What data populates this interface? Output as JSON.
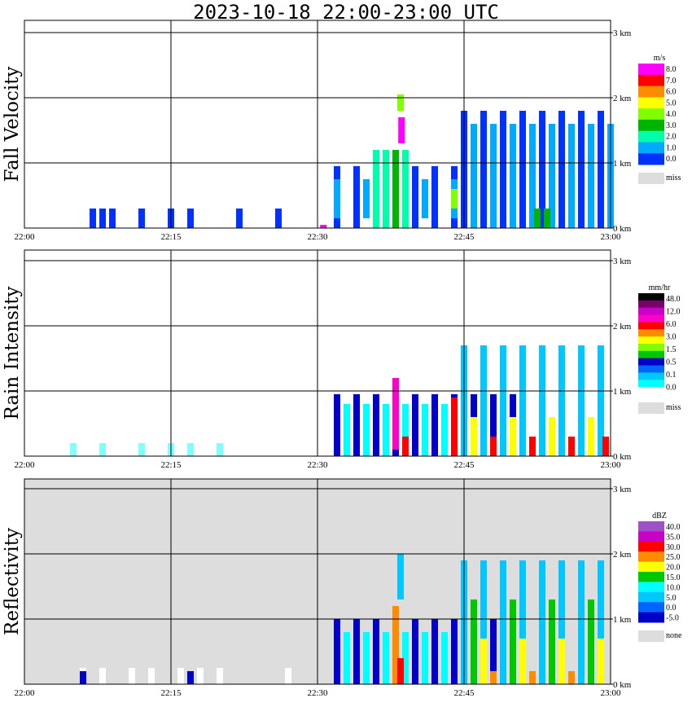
{
  "title": "2023-10-18   22:00-23:00 UTC",
  "chart_data": [
    {
      "type": "heatmap",
      "ylabel": "Fall Velocity",
      "unit": "m/s",
      "x_ticks": [
        "22:00",
        "22:15",
        "22:30",
        "22:45",
        "23:00"
      ],
      "y_ticks": [
        "0 km",
        "1 km",
        "2 km",
        "3 km"
      ],
      "ylim": [
        0,
        3
      ],
      "background": "#ffffff",
      "legend": [
        {
          "label": "8.0",
          "color": "#ff00ff"
        },
        {
          "label": "7.0",
          "color": "#ff0000"
        },
        {
          "label": "6.0",
          "color": "#ff8c00"
        },
        {
          "label": "5.0",
          "color": "#ffff00"
        },
        {
          "label": "4.0",
          "color": "#7fff00"
        },
        {
          "label": "3.0",
          "color": "#00b400"
        },
        {
          "label": "2.0",
          "color": "#00ffaa"
        },
        {
          "label": "1.0",
          "color": "#00aaff"
        },
        {
          "label": "0.0",
          "color": "#0032ff"
        },
        {
          "label": "miss",
          "color": "#dddddd"
        }
      ],
      "cbar_colors": [
        "#ff00ff",
        "#ff0000",
        "#ff8c00",
        "#ffff00",
        "#7fff00",
        "#00b400",
        "#00ffaa",
        "#00aaff",
        "#0032ff"
      ],
      "miss_label": "miss",
      "series": [
        {
          "x": [
            7,
            8,
            9,
            12,
            15,
            17,
            22,
            26
          ],
          "ymin": 0,
          "ymax": 0.3,
          "color": "#0032ff"
        },
        {
          "x": [
            30.6
          ],
          "ymin": 0,
          "ymax": 0.05,
          "color": "#ff00ff"
        },
        {
          "x": [
            32,
            34,
            36,
            38,
            40,
            42,
            44,
            46,
            48,
            50
          ],
          "ymin": 0,
          "ymax": 0.95,
          "color": "#0032ff"
        },
        {
          "x": [
            32,
            35,
            38,
            41,
            44,
            47
          ],
          "ymin": 0.15,
          "ymax": 0.75,
          "color": "#00aaff"
        },
        {
          "x": [
            36,
            37,
            38,
            39
          ],
          "ymin": 0,
          "ymax": 1.2,
          "color": "#00ffaa"
        },
        {
          "x": [
            38
          ],
          "ymin": 0,
          "ymax": 1.2,
          "color": "#00b400"
        },
        {
          "x": [
            38.6
          ],
          "ymin": 1.3,
          "ymax": 1.7,
          "color": "#ff00ff"
        },
        {
          "x": [
            38.5
          ],
          "ymin": 1.8,
          "ymax": 2.05,
          "color": "#7fff00"
        },
        {
          "x": [
            44
          ],
          "ymin": 0.3,
          "ymax": 0.6,
          "color": "#7fff00"
        },
        {
          "x": [
            45,
            47,
            49,
            51,
            53,
            55,
            57,
            59
          ],
          "ymin": 0,
          "ymax": 1.8,
          "color": "#0032ff"
        },
        {
          "x": [
            46,
            48,
            50,
            52,
            54,
            56,
            58,
            60
          ],
          "ymin": 0,
          "ymax": 1.6,
          "color": "#00aaff"
        },
        {
          "x": [
            52.5,
            53.5
          ],
          "ymin": 0,
          "ymax": 0.3,
          "color": "#00b400"
        }
      ]
    },
    {
      "type": "heatmap",
      "ylabel": "Rain Intensity",
      "unit": "mm/hr",
      "x_ticks": [
        "22:00",
        "22:15",
        "22:30",
        "22:45",
        "23:00"
      ],
      "y_ticks": [
        "0 km",
        "1 km",
        "2 km",
        "3 km"
      ],
      "ylim": [
        0,
        3
      ],
      "background": "#ffffff",
      "legend": [
        {
          "label": "48.0",
          "color": "#000000"
        },
        {
          "label": "12.0",
          "color": "#c800c8"
        },
        {
          "label": "6.0",
          "color": "#ff0000"
        },
        {
          "label": "3.0",
          "color": "#ffff00"
        },
        {
          "label": "1.5",
          "color": "#00c800"
        },
        {
          "label": "0.5",
          "color": "#0064ff"
        },
        {
          "label": "0.1",
          "color": "#00ffff"
        },
        {
          "label": "0.0",
          "color": "#ffffff"
        },
        {
          "label": "miss",
          "color": "#dddddd"
        }
      ],
      "cbar_colors": [
        "#000000",
        "#7a006e",
        "#c800c8",
        "#ff00c8",
        "#ff0000",
        "#ff8c00",
        "#ffff00",
        "#7fff00",
        "#00c800",
        "#0000c8",
        "#0064ff",
        "#00c8ff",
        "#00ffff",
        "#ffffff"
      ],
      "miss_label": "miss",
      "series": [
        {
          "x": [
            5,
            8,
            12,
            15,
            17,
            20
          ],
          "ymin": 0,
          "ymax": 0.2,
          "color": "#7fffff"
        },
        {
          "x": [
            32,
            34,
            36,
            38,
            40,
            42,
            44,
            46,
            48,
            50
          ],
          "ymin": 0,
          "ymax": 0.95,
          "color": "#0000c8"
        },
        {
          "x": [
            33,
            35,
            37,
            39,
            41,
            43,
            45,
            47,
            49
          ],
          "ymin": 0,
          "ymax": 0.8,
          "color": "#00ffff"
        },
        {
          "x": [
            38
          ],
          "ymin": 0.1,
          "ymax": 1.2,
          "color": "#ff00c8"
        },
        {
          "x": [
            39
          ],
          "ymin": 0,
          "ymax": 0.3,
          "color": "#ff0000"
        },
        {
          "x": [
            44
          ],
          "ymin": 0,
          "ymax": 0.9,
          "color": "#ff0000"
        },
        {
          "x": [
            45,
            47,
            49,
            51,
            53,
            55,
            57,
            59
          ],
          "ymin": 0,
          "ymax": 1.7,
          "color": "#00c8ff"
        },
        {
          "x": [
            46,
            50,
            54,
            58
          ],
          "ymin": 0,
          "ymax": 0.6,
          "color": "#ffff00"
        },
        {
          "x": [
            48,
            52,
            56,
            59.5
          ],
          "ymin": 0,
          "ymax": 0.3,
          "color": "#ff0000"
        }
      ]
    },
    {
      "type": "heatmap",
      "ylabel": "Reflectivity",
      "unit": "dBZ",
      "x_ticks": [
        "22:00",
        "22:15",
        "22:30",
        "22:45",
        "23:00"
      ],
      "y_ticks": [
        "0 km",
        "1 km",
        "2 km",
        "3 km"
      ],
      "ylim": [
        0,
        3
      ],
      "background": "#dddddd",
      "legend": [
        {
          "label": "40.0",
          "color": "#a050c8"
        },
        {
          "label": "35.0",
          "color": "#c800c8"
        },
        {
          "label": "30.0",
          "color": "#ff0000"
        },
        {
          "label": "25.0",
          "color": "#ff8c00"
        },
        {
          "label": "20.0",
          "color": "#ffff00"
        },
        {
          "label": "15.0",
          "color": "#00c800"
        },
        {
          "label": "10.0",
          "color": "#00ffff"
        },
        {
          "label": "5.0",
          "color": "#00c8ff"
        },
        {
          "label": "0.0",
          "color": "#0064ff"
        },
        {
          "label": "-5.0",
          "color": "#0000c8"
        },
        {
          "label": "none",
          "color": "#dddddd"
        }
      ],
      "cbar_colors": [
        "#a050c8",
        "#c800c8",
        "#ff0000",
        "#ff8c00",
        "#ffff00",
        "#00c800",
        "#00ffff",
        "#00c8ff",
        "#0064ff",
        "#0000c8"
      ],
      "miss_label": "none",
      "series": [
        {
          "x": [
            6,
            8,
            11,
            13,
            16,
            18,
            20,
            27
          ],
          "ymin": 0,
          "ymax": 0.25,
          "color": "#ffffff"
        },
        {
          "x": [
            6,
            17
          ],
          "ymin": 0,
          "ymax": 0.2,
          "color": "#0000c8"
        },
        {
          "x": [
            32,
            34,
            36,
            38,
            40,
            42,
            44,
            46,
            48,
            50
          ],
          "ymin": 0,
          "ymax": 1.0,
          "color": "#0000c8"
        },
        {
          "x": [
            33,
            35,
            37,
            39,
            41,
            43,
            45,
            47,
            49
          ],
          "ymin": 0,
          "ymax": 0.8,
          "color": "#00ffff"
        },
        {
          "x": [
            38
          ],
          "ymin": 0,
          "ymax": 1.2,
          "color": "#ff8c00"
        },
        {
          "x": [
            38.5
          ],
          "ymin": 0,
          "ymax": 0.4,
          "color": "#ff0000"
        },
        {
          "x": [
            38.5
          ],
          "ymin": 1.3,
          "ymax": 2.0,
          "color": "#00c8ff"
        },
        {
          "x": [
            45,
            47,
            49,
            51,
            53,
            55,
            57,
            59
          ],
          "ymin": 0,
          "ymax": 1.9,
          "color": "#00c8ff"
        },
        {
          "x": [
            46,
            50,
            54,
            58
          ],
          "ymin": 0,
          "ymax": 1.3,
          "color": "#00c800"
        },
        {
          "x": [
            47,
            51,
            55,
            59
          ],
          "ymin": 0,
          "ymax": 0.7,
          "color": "#ffff00"
        },
        {
          "x": [
            48,
            52,
            56
          ],
          "ymin": 0,
          "ymax": 0.2,
          "color": "#ff8c00"
        }
      ]
    }
  ]
}
